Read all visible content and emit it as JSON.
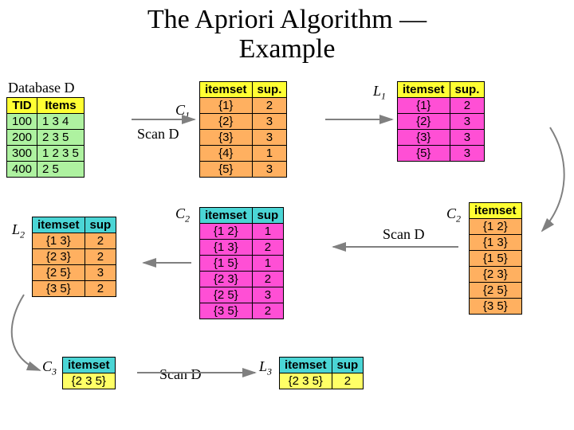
{
  "title_line1": "The Apriori Algorithm —",
  "title_line2": "Example",
  "labels": {
    "databaseD": "Database D",
    "C1": "C",
    "C1_sub": "1",
    "L1": "L",
    "L1_sub": "1",
    "C2a": "C",
    "C2a_sub": "2",
    "C2b": "C",
    "C2b_sub": "2",
    "L2": "L",
    "L2_sub": "2",
    "C3": "C",
    "C3_sub": "3",
    "L3": "L",
    "L3_sub": "3",
    "scanD1": "Scan D",
    "scanD2": "Scan D",
    "scanD3": "Scan D"
  },
  "tables": {
    "D": {
      "headers": [
        "TID",
        "Items"
      ],
      "rows": [
        [
          "100",
          "1 3 4"
        ],
        [
          "200",
          "2 3 5"
        ],
        [
          "300",
          "1 2 3 5"
        ],
        [
          "400",
          "2 5"
        ]
      ]
    },
    "C1": {
      "headers": [
        "itemset",
        "sup."
      ],
      "rows": [
        [
          "{1}",
          "2"
        ],
        [
          "{2}",
          "3"
        ],
        [
          "{3}",
          "3"
        ],
        [
          "{4}",
          "1"
        ],
        [
          "{5}",
          "3"
        ]
      ]
    },
    "L1": {
      "headers": [
        "itemset",
        "sup."
      ],
      "rows": [
        [
          "{1}",
          "2"
        ],
        [
          "{2}",
          "3"
        ],
        [
          "{3}",
          "3"
        ],
        [
          "{5}",
          "3"
        ]
      ]
    },
    "C2b": {
      "headers": [
        "itemset"
      ],
      "rows": [
        [
          "{1 2}"
        ],
        [
          "{1 3}"
        ],
        [
          "{1 5}"
        ],
        [
          "{2 3}"
        ],
        [
          "{2 5}"
        ],
        [
          "{3 5}"
        ]
      ]
    },
    "C2a": {
      "headers": [
        "itemset",
        "sup"
      ],
      "rows": [
        [
          "{1 2}",
          "1"
        ],
        [
          "{1 3}",
          "2"
        ],
        [
          "{1 5}",
          "1"
        ],
        [
          "{2 3}",
          "2"
        ],
        [
          "{2 5}",
          "3"
        ],
        [
          "{3 5}",
          "2"
        ]
      ]
    },
    "L2": {
      "headers": [
        "itemset",
        "sup"
      ],
      "rows": [
        [
          "{1 3}",
          "2"
        ],
        [
          "{2 3}",
          "2"
        ],
        [
          "{2 5}",
          "3"
        ],
        [
          "{3 5}",
          "2"
        ]
      ]
    },
    "C3": {
      "headers": [
        "itemset"
      ],
      "rows": [
        [
          "{2 3 5}"
        ]
      ]
    },
    "L3": {
      "headers": [
        "itemset",
        "sup"
      ],
      "rows": [
        [
          "{2 3 5}",
          "2"
        ]
      ]
    }
  },
  "colors": {
    "arrow": "#808080"
  }
}
